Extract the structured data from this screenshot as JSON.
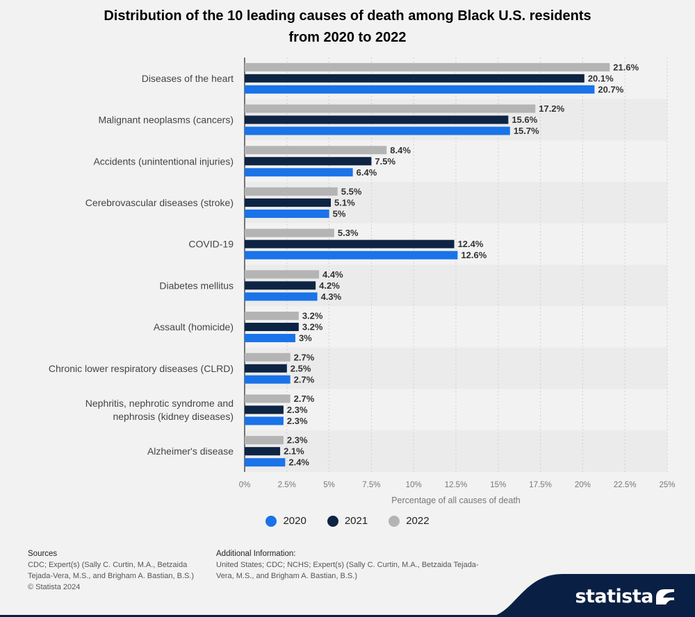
{
  "title_line1": "Distribution of the 10 leading causes of death among Black U.S. residents",
  "title_line2": "from 2020 to 2022",
  "chart_data": {
    "type": "bar",
    "orientation": "horizontal",
    "categories": [
      "Diseases of the heart",
      "Malignant neoplasms (cancers)",
      "Accidents (unintentional injuries)",
      "Cerebrovascular diseases (stroke)",
      "COVID-19",
      "Diabetes mellitus",
      "Assault (homicide)",
      "Chronic lower respiratory diseases (CLRD)",
      "Nephritis, nephrotic syndrome and|nephrosis (kidney diseases)",
      "Alzheimer's disease"
    ],
    "series": [
      {
        "name": "2022",
        "color": "#b4b4b4",
        "values": [
          21.6,
          17.2,
          8.4,
          5.5,
          5.3,
          4.4,
          3.2,
          2.7,
          2.7,
          2.3
        ],
        "labels": [
          "21.6%",
          "17.2%",
          "8.4%",
          "5.5%",
          "5.3%",
          "4.4%",
          "3.2%",
          "2.7%",
          "2.7%",
          "2.3%"
        ]
      },
      {
        "name": "2021",
        "color": "#0e2444",
        "values": [
          20.1,
          15.6,
          7.5,
          5.1,
          12.4,
          4.2,
          3.2,
          2.5,
          2.3,
          2.1
        ],
        "labels": [
          "20.1%",
          "15.6%",
          "7.5%",
          "5.1%",
          "12.4%",
          "4.2%",
          "3.2%",
          "2.5%",
          "2.3%",
          "2.1%"
        ]
      },
      {
        "name": "2020",
        "color": "#1a73e8",
        "values": [
          20.7,
          15.7,
          6.4,
          5.0,
          12.6,
          4.3,
          3.0,
          2.7,
          2.3,
          2.4
        ],
        "labels": [
          "20.7%",
          "15.7%",
          "6.4%",
          "5%",
          "12.6%",
          "4.3%",
          "3%",
          "2.7%",
          "2.3%",
          "2.4%"
        ]
      }
    ],
    "xlim": [
      0,
      25
    ],
    "ticks": [
      0,
      2.5,
      5,
      7.5,
      10,
      12.5,
      15,
      17.5,
      20,
      22.5,
      25
    ],
    "tick_labels": [
      "0%",
      "2.5%",
      "5%",
      "7.5%",
      "10%",
      "12.5%",
      "15%",
      "17.5%",
      "20%",
      "22.5%",
      "25%"
    ],
    "xlabel": "Percentage of all causes of death",
    "grid": true
  },
  "legend": [
    {
      "label": "2020",
      "color": "#1a73e8"
    },
    {
      "label": "2021",
      "color": "#0e2444"
    },
    {
      "label": "2022",
      "color": "#b4b4b4"
    }
  ],
  "footer": {
    "sources_head": "Sources",
    "sources_text": "CDC; Expert(s) (Sally C. Curtin, M.A., Betzaida Tejada-Vera, M.S., and Brigham A. Bastian, B.S.)",
    "copyright": "© Statista 2024",
    "additional_head": "Additional Information:",
    "additional_text": "United States; CDC; NCHS; Expert(s) (Sally C. Curtin, M.A., Betzaida Tejada-Vera, M.S., and Brigham A. Bastian, B.S.)"
  },
  "brand": {
    "name": "statista",
    "bg_color": "#0a1f44"
  }
}
